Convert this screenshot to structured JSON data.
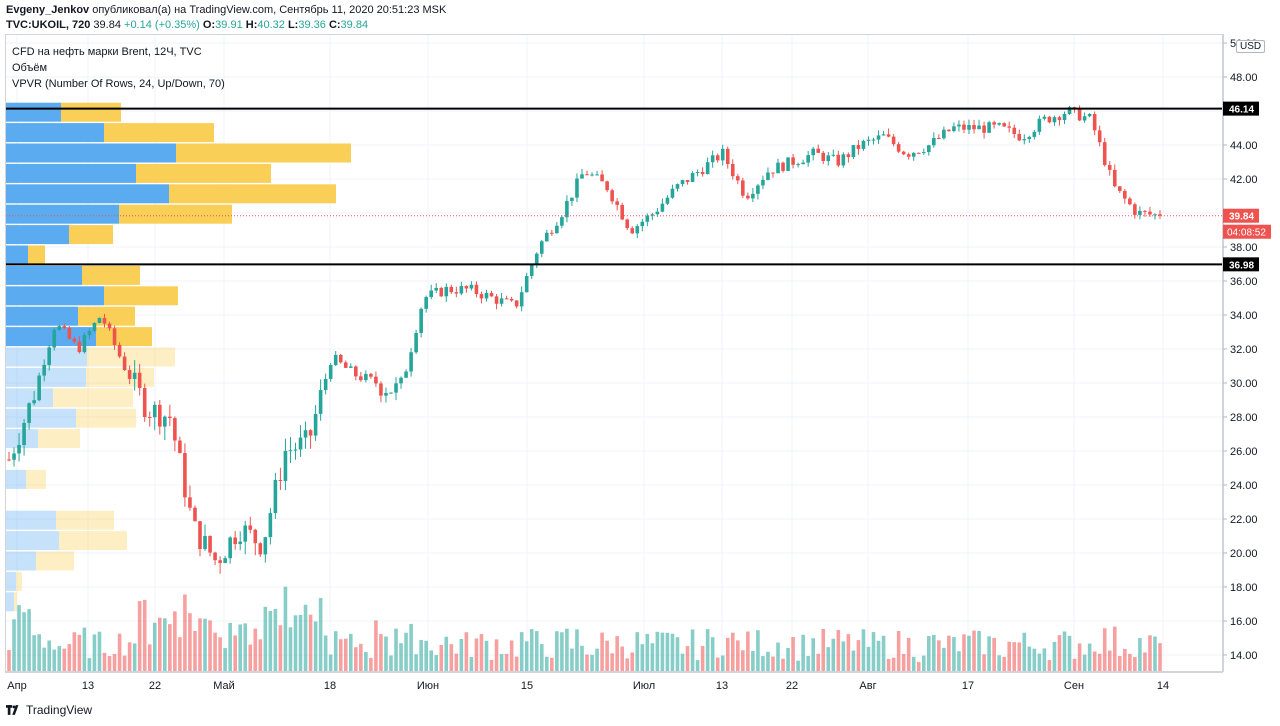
{
  "header": {
    "author": "Evgeny_Jenkov",
    "published": "опубликовал(а) на TradingView.com, Сентябрь 11, 2020 20:51:23 MSK",
    "symbol": "TVC:UKOIL, 720",
    "last": "39.84",
    "change": "+0.14 (+0.35%)",
    "o_label": "O:",
    "o": "39.91",
    "h_label": "H:",
    "h": "40.32",
    "l_label": "L:",
    "l": "39.36",
    "c_label": "C:",
    "c": "39.84"
  },
  "legend": {
    "title": "CFD на нефть марки Brent, 12Ч, TVC",
    "volume": "Объём",
    "vpvr": "VPVR (Number Of Rows, 24, Up/Down, 70)"
  },
  "axis": {
    "currency": "USD",
    "ticks": [
      "50.00",
      "48.00",
      "46.00",
      "44.00",
      "42.00",
      "40.00",
      "38.00",
      "36.00",
      "34.00",
      "32.00",
      "30.00",
      "28.00",
      "26.00",
      "24.00",
      "22.00",
      "20.00",
      "18.00",
      "16.00",
      "14.00"
    ],
    "time_labels": [
      "Апр",
      "13",
      "22",
      "Май",
      "18",
      "Июн",
      "15",
      "Июл",
      "13",
      "22",
      "Авг",
      "17",
      "Сен",
      "14"
    ]
  },
  "markers": {
    "resistance": "46.14",
    "support": "36.98",
    "last_price": "39.84",
    "countdown": "04:08:52"
  },
  "footer": {
    "brand": "TradingView"
  },
  "colors": {
    "up": "#26a69a",
    "down": "#ef5350",
    "vp_up": "#5aabf0",
    "vp_down": "#f9cf57"
  },
  "chart_data": {
    "type": "candlestick",
    "title": "CFD на нефть марки Brent, 12Ч, TVC",
    "ylim": [
      13,
      50.5
    ],
    "y_unit": "USD",
    "horizontal_lines": [
      46.14,
      36.98
    ],
    "close_path": [
      [
        "Апр",
        25.5
      ],
      [
        "",
        29.0
      ],
      [
        "",
        33.5
      ],
      [
        "",
        32.0
      ],
      [
        "13",
        34.0
      ],
      [
        "",
        31.0
      ],
      [
        "",
        28.5
      ],
      [
        "",
        28.0
      ],
      [
        "22",
        21.5
      ],
      [
        "",
        19.5
      ],
      [
        "",
        21.5
      ],
      [
        "",
        20.5
      ],
      [
        "Май",
        26.0
      ],
      [
        "",
        26.5
      ],
      [
        "",
        31.5
      ],
      [
        "",
        30.5
      ],
      [
        "",
        30.0
      ],
      [
        "",
        29.5
      ],
      [
        "18",
        35.0
      ],
      [
        "",
        35.5
      ],
      [
        "",
        35.5
      ],
      [
        "",
        35.0
      ],
      [
        "",
        34.5
      ],
      [
        "Июн",
        38.0
      ],
      [
        "",
        40.0
      ],
      [
        "",
        42.5
      ],
      [
        "",
        41.5
      ],
      [
        "15",
        39.0
      ],
      [
        "",
        40.0
      ],
      [
        "",
        41.5
      ],
      [
        "",
        42.5
      ],
      [
        "",
        43.5
      ],
      [
        "",
        41.0
      ],
      [
        "Июл",
        42.5
      ],
      [
        "",
        43.0
      ],
      [
        "13",
        43.5
      ],
      [
        "",
        43.0
      ],
      [
        "22",
        44.0
      ],
      [
        "",
        44.5
      ],
      [
        "",
        43.5
      ],
      [
        "Авг",
        44.0
      ],
      [
        "",
        45.0
      ],
      [
        "",
        45.0
      ],
      [
        "17",
        45.0
      ],
      [
        "",
        44.5
      ],
      [
        "",
        45.5
      ],
      [
        "",
        46.0
      ],
      [
        "Сен",
        45.5
      ],
      [
        "",
        41.5
      ],
      [
        "",
        40.0
      ],
      [
        "14",
        39.84
      ]
    ],
    "volume_profile": [
      {
        "price": 45.9,
        "up": 55,
        "down": 60
      },
      {
        "price": 44.7,
        "up": 98,
        "down": 110
      },
      {
        "price": 43.5,
        "up": 170,
        "down": 175
      },
      {
        "price": 42.3,
        "up": 130,
        "down": 135
      },
      {
        "price": 41.1,
        "up": 163,
        "down": 167
      },
      {
        "price": 39.9,
        "up": 113,
        "down": 113
      },
      {
        "price": 38.7,
        "up": 63,
        "down": 44
      },
      {
        "price": 37.5,
        "up": 22,
        "down": 17
      },
      {
        "price": 36.3,
        "up": 76,
        "down": 58
      },
      {
        "price": 35.1,
        "up": 98,
        "down": 74
      },
      {
        "price": 33.9,
        "up": 72,
        "down": 57
      },
      {
        "price": 32.7,
        "up": 90,
        "down": 56
      },
      {
        "price": 31.5,
        "up": 81,
        "down": 88,
        "faded": true
      },
      {
        "price": 30.3,
        "up": 80,
        "down": 68,
        "faded": true
      },
      {
        "price": 29.1,
        "up": 47,
        "down": 80,
        "faded": true
      },
      {
        "price": 27.9,
        "up": 70,
        "down": 60,
        "faded": true
      },
      {
        "price": 26.7,
        "up": 32,
        "down": 42,
        "faded": true
      },
      {
        "price": 24.3,
        "up": 20,
        "down": 20,
        "faded": true
      },
      {
        "price": 21.9,
        "up": 50,
        "down": 58,
        "faded": true
      },
      {
        "price": 20.7,
        "up": 53,
        "down": 68,
        "faded": true
      },
      {
        "price": 19.5,
        "up": 30,
        "down": 38,
        "faded": true
      },
      {
        "price": 18.3,
        "up": 10,
        "down": 6,
        "faded": true
      },
      {
        "price": 17.1,
        "up": 8,
        "down": 3,
        "faded": true
      }
    ]
  }
}
